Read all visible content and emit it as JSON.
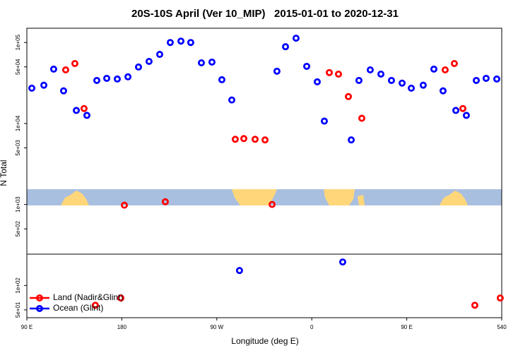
{
  "chart_data": {
    "type": "scatter",
    "title": "20S-10S April (Ver 10_MIP)   2015-01-01 to 2020-12-31",
    "x_label": "Longitude (deg E)",
    "y_label": "N Total",
    "xlim": [
      90,
      540
    ],
    "ylim": [
      40,
      150000
    ],
    "log_y": true,
    "legend": "bottom-left",
    "xticks": [
      {
        "value": 90,
        "label": "90 E"
      },
      180,
      {
        "value": 270,
        "label": "90 W"
      },
      {
        "value": 360,
        "label": "0"
      },
      {
        "value": 450,
        "label": "90 E"
      },
      540
    ],
    "yticks": [
      {
        "value": 50,
        "label": "5e+01"
      },
      {
        "value": 100,
        "label": "1e+02"
      },
      {
        "value": 500,
        "label": "5e+02"
      },
      {
        "value": 1000,
        "label": "1e+03"
      },
      {
        "value": 5000,
        "label": "5e+03"
      },
      {
        "value": 10000,
        "label": "1e+04"
      },
      {
        "value": 50000,
        "label": "5e+04"
      },
      {
        "value": 100000,
        "label": "1e+05"
      }
    ],
    "series": [
      {
        "name": "Land (Nadir&Glint)",
        "color": "#ff0000",
        "x": [
          126.8,
          135.5,
          144.2,
          154.9,
          179.1,
          182.4,
          221.2,
          287.5,
          295.6,
          306.3,
          315.7,
          322.4,
          376.6,
          385.3,
          394.7,
          407.4,
          486.4,
          495.1,
          503.2,
          514.5,
          538.6
        ],
        "values": [
          45900,
          55000,
          15300,
          57,
          70,
          980,
          1080,
          6380,
          6510,
          6380,
          6270,
          1000,
          42500,
          40700,
          21500,
          11600,
          45900,
          55000,
          15300,
          57,
          70
        ]
      },
      {
        "name": "Ocean (Glint)",
        "color": "#0000ff",
        "x": [
          94.7,
          106.1,
          115.4,
          124.8,
          136.9,
          146.9,
          156.3,
          165.7,
          175.7,
          185.8,
          195.8,
          205.8,
          215.9,
          225.9,
          236.0,
          245.3,
          255.4,
          265.4,
          274.8,
          284.2,
          291.5,
          327.0,
          335.1,
          345.1,
          355.2,
          365.2,
          371.9,
          389.3,
          397.4,
          404.7,
          415.4,
          425.5,
          435.5,
          445.6,
          454.3,
          465.6,
          475.7,
          484.4,
          496.5,
          506.5,
          515.9,
          525.2,
          535.3
        ],
        "values": [
          27300,
          29700,
          46900,
          25300,
          14500,
          12600,
          34000,
          36100,
          35400,
          37700,
          49800,
          58400,
          71300,
          100000,
          104000,
          100000,
          56100,
          57300,
          34700,
          19500,
          153,
          44200,
          88700,
          113000,
          50800,
          32700,
          10700,
          195,
          6270,
          34000,
          45900,
          40700,
          34000,
          31500,
          27300,
          29700,
          46900,
          25300,
          14500,
          12600,
          34000,
          36100,
          35400
        ]
      }
    ]
  }
}
